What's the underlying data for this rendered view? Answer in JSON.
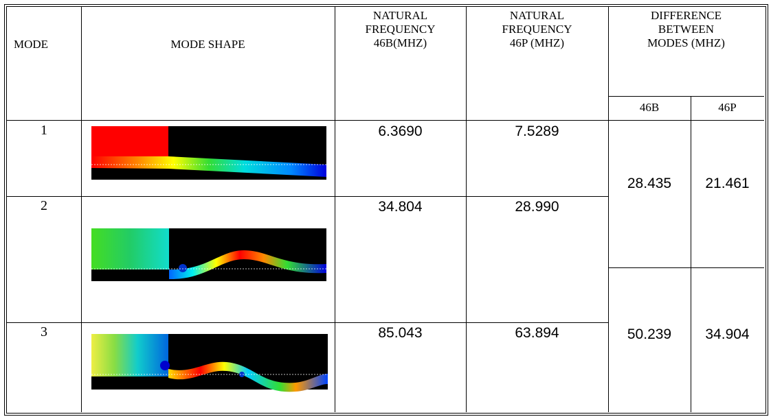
{
  "table": {
    "header": [
      "MODE",
      "MODE SHAPE",
      "NATURAL\nFREQUENCY\n46B(MHZ)",
      "NATURAL\nFREQUENCY\n46P (MHZ)",
      "DIFFERENCE\nBETWEEN\nMODES (MHZ)"
    ],
    "subheader": [
      "46B",
      "46P"
    ],
    "rows": [
      [
        "1",
        "6.3690",
        "7.5289"
      ],
      [
        "2",
        "34.804",
        "28.990"
      ],
      [
        "3",
        "85.043",
        "63.894"
      ]
    ],
    "differences": [
      [
        "28.435",
        "21.461"
      ],
      [
        "50.239",
        "34.904"
      ]
    ]
  }
}
